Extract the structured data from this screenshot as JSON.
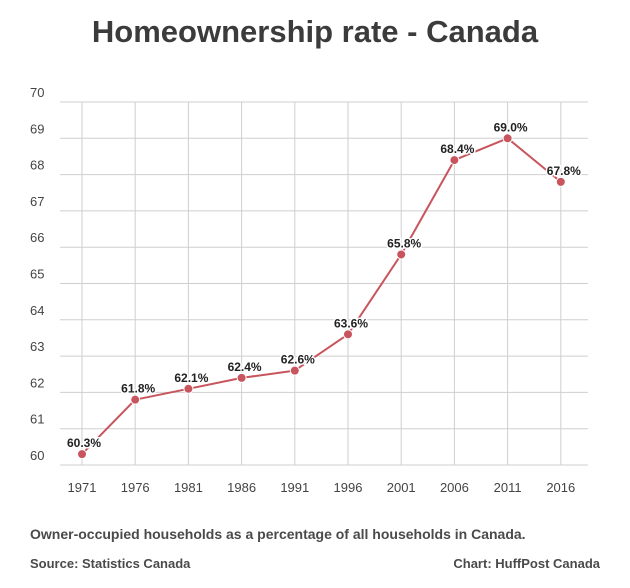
{
  "chart_data": {
    "type": "line",
    "title": "Homeownership rate - Canada",
    "x": [
      "1971",
      "1976",
      "1981",
      "1986",
      "1991",
      "1996",
      "2001",
      "2006",
      "2011",
      "2016"
    ],
    "series": [
      {
        "values": [
          60.3,
          61.8,
          62.1,
          62.4,
          62.6,
          63.6,
          65.8,
          68.4,
          69.0,
          67.8
        ],
        "labels": [
          "60.3%",
          "61.8%",
          "62.1%",
          "62.4%",
          "62.6%",
          "63.6%",
          "65.8%",
          "68.4%",
          "69.0%",
          "67.8%"
        ],
        "color": "#c8545d"
      }
    ],
    "y_ticks": [
      60,
      61,
      62,
      63,
      64,
      65,
      66,
      67,
      68,
      69,
      70
    ],
    "ylim": [
      60,
      70
    ],
    "xlabel": "",
    "ylabel": "",
    "grid": true,
    "colors": {
      "grid": "#cfcfcf",
      "line": "#c8545d",
      "marker": "#c8545d"
    }
  },
  "footer": {
    "note": "Owner-occupied households as a percentage of all households in Canada.",
    "source": "Source: Statistics Canada",
    "credit": "Chart: HuffPost Canada"
  }
}
